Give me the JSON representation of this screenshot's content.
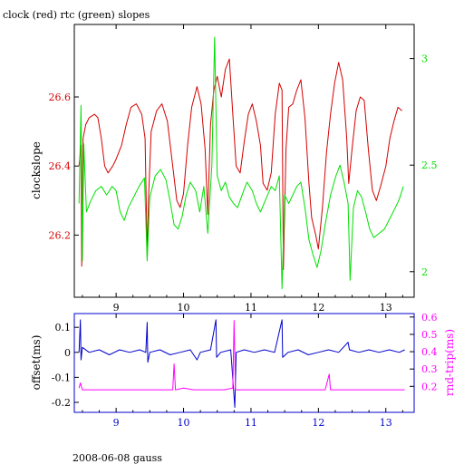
{
  "title": "clock (red) rtc (green) slopes",
  "footer": "2008-06-08 gauss",
  "colors": {
    "clock": "#d40000",
    "rtc": "#00e000",
    "offset": "#0000cc",
    "rndtrip": "#ff00ff",
    "frame": "#000000"
  },
  "chart_data": [
    {
      "type": "line",
      "title": "clock (red) rtc (green) slopes",
      "xlabel": "",
      "ylabel": "clockslope",
      "y2label": "",
      "xlim": [
        8.38,
        13.42
      ],
      "ylim": [
        26.02,
        26.81
      ],
      "y2lim": [
        1.88,
        3.16
      ],
      "xticks": [
        9,
        10,
        11,
        12,
        13
      ],
      "yticks": [
        26.2,
        26.4,
        26.6
      ],
      "y2ticks": [
        2,
        2.5,
        3
      ],
      "series": [
        {
          "name": "clock",
          "axis": "left",
          "color": "#d40000",
          "points": [
            [
              8.45,
              26.4
            ],
            [
              8.48,
              26.46
            ],
            [
              8.49,
              26.11
            ],
            [
              8.51,
              26.48
            ],
            [
              8.55,
              26.52
            ],
            [
              8.6,
              26.54
            ],
            [
              8.68,
              26.55
            ],
            [
              8.73,
              26.54
            ],
            [
              8.78,
              26.48
            ],
            [
              8.83,
              26.4
            ],
            [
              8.88,
              26.38
            ],
            [
              8.95,
              26.4
            ],
            [
              9.0,
              26.42
            ],
            [
              9.08,
              26.46
            ],
            [
              9.15,
              26.52
            ],
            [
              9.22,
              26.57
            ],
            [
              9.3,
              26.58
            ],
            [
              9.38,
              26.55
            ],
            [
              9.43,
              26.48
            ],
            [
              9.46,
              26.14
            ],
            [
              9.48,
              26.3
            ],
            [
              9.52,
              26.5
            ],
            [
              9.6,
              26.56
            ],
            [
              9.68,
              26.58
            ],
            [
              9.76,
              26.53
            ],
            [
              9.84,
              26.4
            ],
            [
              9.9,
              26.3
            ],
            [
              9.95,
              26.28
            ],
            [
              10.0,
              26.32
            ],
            [
              10.06,
              26.46
            ],
            [
              10.12,
              26.57
            ],
            [
              10.2,
              26.63
            ],
            [
              10.26,
              26.58
            ],
            [
              10.32,
              26.45
            ],
            [
              10.36,
              26.26
            ],
            [
              10.4,
              26.52
            ],
            [
              10.45,
              26.62
            ],
            [
              10.5,
              26.66
            ],
            [
              10.56,
              26.6
            ],
            [
              10.62,
              26.68
            ],
            [
              10.68,
              26.71
            ],
            [
              10.73,
              26.55
            ],
            [
              10.78,
              26.4
            ],
            [
              10.84,
              26.38
            ],
            [
              10.9,
              26.47
            ],
            [
              10.96,
              26.55
            ],
            [
              11.02,
              26.58
            ],
            [
              11.08,
              26.53
            ],
            [
              11.14,
              26.46
            ],
            [
              11.18,
              26.35
            ],
            [
              11.24,
              26.33
            ],
            [
              11.3,
              26.38
            ],
            [
              11.36,
              26.55
            ],
            [
              11.42,
              26.64
            ],
            [
              11.46,
              26.62
            ],
            [
              11.48,
              26.1
            ],
            [
              11.52,
              26.45
            ],
            [
              11.56,
              26.57
            ],
            [
              11.62,
              26.58
            ],
            [
              11.68,
              26.62
            ],
            [
              11.74,
              26.65
            ],
            [
              11.8,
              26.54
            ],
            [
              11.86,
              26.35
            ],
            [
              11.9,
              26.25
            ],
            [
              11.96,
              26.2
            ],
            [
              12.0,
              26.16
            ],
            [
              12.06,
              26.28
            ],
            [
              12.12,
              26.44
            ],
            [
              12.18,
              26.55
            ],
            [
              12.24,
              26.64
            ],
            [
              12.3,
              26.7
            ],
            [
              12.36,
              26.65
            ],
            [
              12.42,
              26.48
            ],
            [
              12.45,
              26.35
            ],
            [
              12.5,
              26.45
            ],
            [
              12.56,
              26.56
            ],
            [
              12.62,
              26.6
            ],
            [
              12.68,
              26.59
            ],
            [
              12.74,
              26.45
            ],
            [
              12.8,
              26.33
            ],
            [
              12.86,
              26.3
            ],
            [
              12.92,
              26.34
            ],
            [
              13.0,
              26.4
            ],
            [
              13.06,
              26.48
            ],
            [
              13.12,
              26.53
            ],
            [
              13.18,
              26.57
            ],
            [
              13.24,
              26.56
            ]
          ]
        },
        {
          "name": "rtc",
          "axis": "right",
          "color": "#00e000",
          "points": [
            [
              8.45,
              2.32
            ],
            [
              8.48,
              2.78
            ],
            [
              8.5,
              2.05
            ],
            [
              8.52,
              2.6
            ],
            [
              8.56,
              2.28
            ],
            [
              8.62,
              2.33
            ],
            [
              8.7,
              2.38
            ],
            [
              8.78,
              2.4
            ],
            [
              8.86,
              2.36
            ],
            [
              8.94,
              2.4
            ],
            [
              9.0,
              2.38
            ],
            [
              9.06,
              2.28
            ],
            [
              9.12,
              2.24
            ],
            [
              9.18,
              2.3
            ],
            [
              9.26,
              2.35
            ],
            [
              9.34,
              2.4
            ],
            [
              9.42,
              2.44
            ],
            [
              9.46,
              2.05
            ],
            [
              9.5,
              2.35
            ],
            [
              9.58,
              2.45
            ],
            [
              9.66,
              2.48
            ],
            [
              9.74,
              2.43
            ],
            [
              9.8,
              2.33
            ],
            [
              9.86,
              2.22
            ],
            [
              9.92,
              2.2
            ],
            [
              9.98,
              2.26
            ],
            [
              10.04,
              2.36
            ],
            [
              10.1,
              2.42
            ],
            [
              10.18,
              2.38
            ],
            [
              10.24,
              2.28
            ],
            [
              10.3,
              2.4
            ],
            [
              10.36,
              2.18
            ],
            [
              10.42,
              2.5
            ],
            [
              10.46,
              3.1
            ],
            [
              10.5,
              2.45
            ],
            [
              10.56,
              2.38
            ],
            [
              10.62,
              2.42
            ],
            [
              10.68,
              2.35
            ],
            [
              10.74,
              2.32
            ],
            [
              10.8,
              2.3
            ],
            [
              10.88,
              2.37
            ],
            [
              10.94,
              2.42
            ],
            [
              11.02,
              2.38
            ],
            [
              11.08,
              2.32
            ],
            [
              11.14,
              2.28
            ],
            [
              11.22,
              2.34
            ],
            [
              11.3,
              2.4
            ],
            [
              11.36,
              2.38
            ],
            [
              11.42,
              2.45
            ],
            [
              11.46,
              1.92
            ],
            [
              11.5,
              2.36
            ],
            [
              11.56,
              2.32
            ],
            [
              11.62,
              2.36
            ],
            [
              11.68,
              2.4
            ],
            [
              11.74,
              2.42
            ],
            [
              11.8,
              2.3
            ],
            [
              11.86,
              2.15
            ],
            [
              11.92,
              2.08
            ],
            [
              11.98,
              2.02
            ],
            [
              12.04,
              2.1
            ],
            [
              12.1,
              2.22
            ],
            [
              12.18,
              2.36
            ],
            [
              12.26,
              2.45
            ],
            [
              12.32,
              2.5
            ],
            [
              12.38,
              2.42
            ],
            [
              12.44,
              2.32
            ],
            [
              12.47,
              1.96
            ],
            [
              12.52,
              2.3
            ],
            [
              12.58,
              2.38
            ],
            [
              12.64,
              2.35
            ],
            [
              12.7,
              2.28
            ],
            [
              12.76,
              2.2
            ],
            [
              12.82,
              2.16
            ],
            [
              12.9,
              2.18
            ],
            [
              12.98,
              2.2
            ],
            [
              13.06,
              2.25
            ],
            [
              13.14,
              2.3
            ],
            [
              13.2,
              2.34
            ],
            [
              13.26,
              2.4
            ]
          ]
        }
      ]
    },
    {
      "type": "line",
      "xlabel": "",
      "ylabel": "offset(ms)",
      "y2label": "rnd-trip(ms)",
      "xlim": [
        8.38,
        13.42
      ],
      "ylim": [
        -0.24,
        0.155
      ],
      "y2lim": [
        0.05,
        0.62
      ],
      "xticks": [
        9,
        10,
        11,
        12,
        13
      ],
      "yticks": [
        -0.2,
        -0.1,
        0,
        0.1
      ],
      "y2ticks": [
        0.2,
        0.3,
        0.4,
        0.5,
        0.6
      ],
      "series": [
        {
          "name": "offset",
          "axis": "left",
          "color": "#0000cc",
          "points": [
            [
              8.45,
              0.0
            ],
            [
              8.47,
              0.13
            ],
            [
              8.48,
              -0.03
            ],
            [
              8.5,
              0.02
            ],
            [
              8.6,
              0.0
            ],
            [
              8.75,
              0.01
            ],
            [
              8.9,
              -0.01
            ],
            [
              9.05,
              0.01
            ],
            [
              9.2,
              0.0
            ],
            [
              9.35,
              0.01
            ],
            [
              9.44,
              0.0
            ],
            [
              9.46,
              0.12
            ],
            [
              9.47,
              -0.04
            ],
            [
              9.5,
              0.0
            ],
            [
              9.65,
              0.01
            ],
            [
              9.8,
              -0.01
            ],
            [
              9.95,
              0.0
            ],
            [
              10.1,
              0.01
            ],
            [
              10.2,
              -0.03
            ],
            [
              10.25,
              0.0
            ],
            [
              10.4,
              0.01
            ],
            [
              10.48,
              0.13
            ],
            [
              10.49,
              -0.02
            ],
            [
              10.55,
              0.0
            ],
            [
              10.7,
              0.01
            ],
            [
              10.76,
              -0.22
            ],
            [
              10.78,
              0.0
            ],
            [
              10.9,
              0.01
            ],
            [
              11.05,
              0.0
            ],
            [
              11.2,
              0.01
            ],
            [
              11.35,
              0.0
            ],
            [
              11.46,
              0.13
            ],
            [
              11.47,
              -0.02
            ],
            [
              11.55,
              0.0
            ],
            [
              11.7,
              0.01
            ],
            [
              11.85,
              -0.01
            ],
            [
              12.0,
              0.0
            ],
            [
              12.15,
              0.01
            ],
            [
              12.3,
              0.0
            ],
            [
              12.44,
              0.04
            ],
            [
              12.46,
              0.01
            ],
            [
              12.6,
              0.0
            ],
            [
              12.75,
              0.01
            ],
            [
              12.9,
              0.0
            ],
            [
              13.05,
              0.01
            ],
            [
              13.2,
              0.0
            ],
            [
              13.28,
              0.01
            ]
          ]
        },
        {
          "name": "rnd-trip",
          "axis": "right",
          "color": "#ff00ff",
          "points": [
            [
              8.45,
              0.19
            ],
            [
              8.47,
              0.22
            ],
            [
              8.5,
              0.18
            ],
            [
              8.65,
              0.18
            ],
            [
              8.8,
              0.18
            ],
            [
              8.95,
              0.18
            ],
            [
              9.1,
              0.18
            ],
            [
              9.25,
              0.18
            ],
            [
              9.4,
              0.18
            ],
            [
              9.55,
              0.18
            ],
            [
              9.7,
              0.18
            ],
            [
              9.84,
              0.18
            ],
            [
              9.86,
              0.33
            ],
            [
              9.88,
              0.18
            ],
            [
              10.0,
              0.19
            ],
            [
              10.15,
              0.18
            ],
            [
              10.3,
              0.18
            ],
            [
              10.45,
              0.18
            ],
            [
              10.6,
              0.18
            ],
            [
              10.73,
              0.19
            ],
            [
              10.75,
              0.58
            ],
            [
              10.77,
              0.18
            ],
            [
              10.9,
              0.18
            ],
            [
              11.05,
              0.18
            ],
            [
              11.2,
              0.18
            ],
            [
              11.35,
              0.18
            ],
            [
              11.5,
              0.18
            ],
            [
              11.65,
              0.18
            ],
            [
              11.8,
              0.18
            ],
            [
              11.95,
              0.18
            ],
            [
              12.1,
              0.18
            ],
            [
              12.16,
              0.27
            ],
            [
              12.18,
              0.18
            ],
            [
              12.3,
              0.18
            ],
            [
              12.45,
              0.18
            ],
            [
              12.6,
              0.18
            ],
            [
              12.75,
              0.18
            ],
            [
              12.9,
              0.18
            ],
            [
              13.05,
              0.18
            ],
            [
              13.2,
              0.18
            ],
            [
              13.28,
              0.18
            ]
          ]
        }
      ]
    }
  ]
}
